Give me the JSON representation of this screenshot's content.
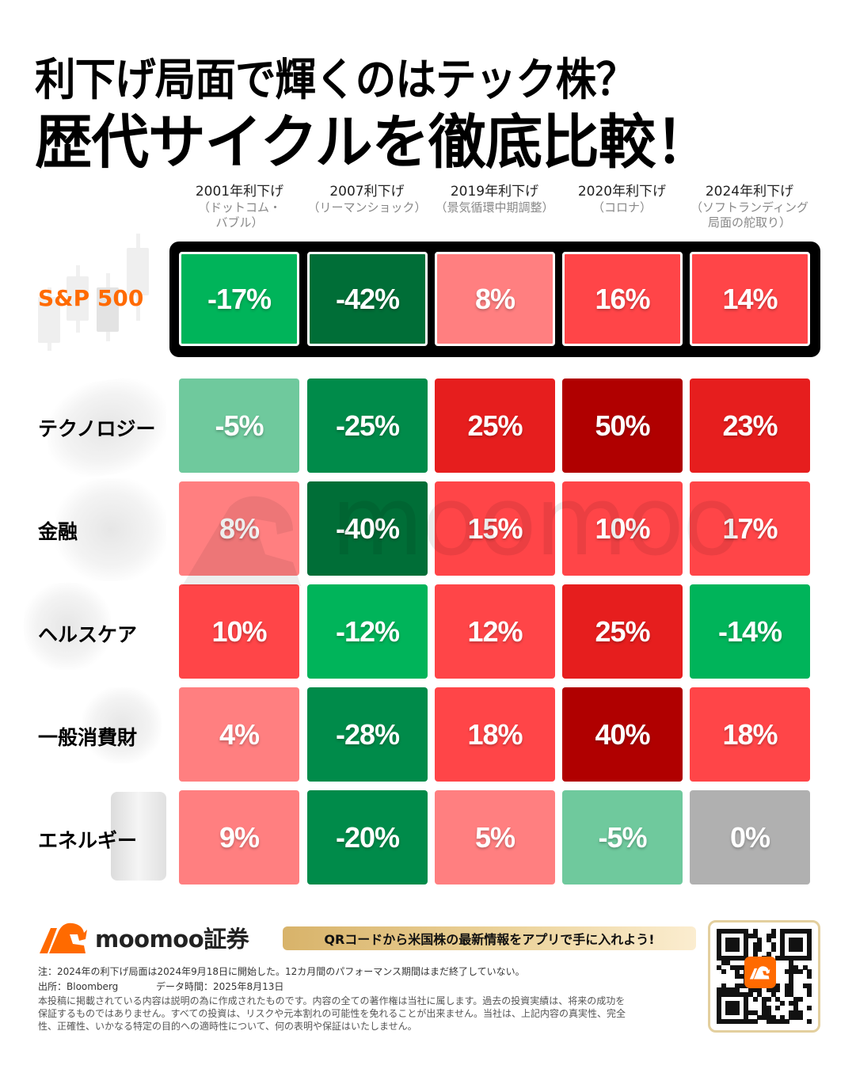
{
  "title": {
    "line1": "利下げ局面で輝くのはテック株？",
    "line2": "歴代サイクルを徹底比較！"
  },
  "columns": [
    {
      "year": "2001年利下げ",
      "note": "（ドットコム・バブル）"
    },
    {
      "year": "2007利下げ",
      "note": "（リーマンショック）"
    },
    {
      "year": "2019年利下げ",
      "note": "（景気循環中期調整）"
    },
    {
      "year": "2020年利下げ",
      "note": "（コロナ）"
    },
    {
      "year": "2024年利下げ",
      "note": "（ソフトランディング局面の舵取り）"
    }
  ],
  "rows": [
    {
      "label": "S&P 500",
      "values": [
        "-17%",
        "-42%",
        "8%",
        "16%",
        "14%"
      ],
      "colors": [
        "#00b45a",
        "#006e37",
        "#ff7f80",
        "#ff4548",
        "#ff4548"
      ]
    },
    {
      "label": "テクノロジー",
      "values": [
        "-5%",
        "-25%",
        "25%",
        "50%",
        "23%"
      ],
      "colors": [
        "#6fc99d",
        "#008b4a",
        "#e61e1e",
        "#b00000",
        "#e61e1e"
      ]
    },
    {
      "label": "金融",
      "values": [
        "8%",
        "-40%",
        "15%",
        "10%",
        "17%"
      ],
      "colors": [
        "#ff7f80",
        "#006e37",
        "#ff4548",
        "#ff4548",
        "#ff4548"
      ]
    },
    {
      "label": "ヘルスケア",
      "values": [
        "10%",
        "-12%",
        "12%",
        "25%",
        "-14%"
      ],
      "colors": [
        "#ff4548",
        "#00b45a",
        "#ff4548",
        "#e61e1e",
        "#00b45a"
      ]
    },
    {
      "label": "一般消費財",
      "values": [
        "4%",
        "-28%",
        "18%",
        "40%",
        "18%"
      ],
      "colors": [
        "#ff7f80",
        "#008b4a",
        "#ff4548",
        "#b00000",
        "#ff4548"
      ]
    },
    {
      "label": "エネルギー",
      "values": [
        "9%",
        "-20%",
        "5%",
        "-5%",
        "0%"
      ],
      "colors": [
        "#ff7f80",
        "#008b4a",
        "#ff7f80",
        "#6fc99d",
        "#b0b0b0"
      ]
    }
  ],
  "watermark": "moomoo",
  "footer": {
    "brand": "moomoo証券",
    "banner": "QRコードから米国株の最新情報をアプリで手に入れよう!",
    "note": "注：2024年の利下げ局面は2024年9月18日に開始した。12カ月間のパフォーマンス期間はまだ終了していない。",
    "source": "出所：Bloomberg",
    "data_time": "データ時間：2025年8月13日",
    "disclaimer": "本投稿に掲載されている内容は説明の為に作成されたものです。内容の全ての著作権は当社に属します。過去の投資実績は、将来の成功を保証するものではありません。すべての投資は、リスクや元本割れの可能性を免れることが出来ません。当社は、上記内容の真実性、完全性、正確性、いかなる特定の目的への適時性について、何の表明や保証はいたしません。"
  },
  "colors": {
    "accent_orange": "#ff6a00",
    "banner_gold": "#e3c685"
  },
  "chart_data": {
    "type": "heatmap",
    "title": "利下げ局面で輝くのはテック株？ 歴代サイクルを徹底比較！",
    "x": [
      "2001年利下げ（ドットコム・バブル）",
      "2007利下げ（リーマンショック）",
      "2019年利下げ（景気循環中期調整）",
      "2020年利下げ（コロナ）",
      "2024年利下げ（ソフトランディング局面の舵取り）"
    ],
    "y": [
      "S&P 500",
      "テクノロジー",
      "金融",
      "ヘルスケア",
      "一般消費財",
      "エネルギー"
    ],
    "values": [
      [
        -17,
        -42,
        8,
        16,
        14
      ],
      [
        -5,
        -25,
        25,
        50,
        23
      ],
      [
        8,
        -40,
        15,
        10,
        17
      ],
      [
        10,
        -12,
        12,
        25,
        -14
      ],
      [
        4,
        -28,
        18,
        40,
        18
      ],
      [
        9,
        -20,
        5,
        -5,
        0
      ]
    ],
    "unit": "%",
    "color_scale": "red = positive, green = negative, gray = zero",
    "highlight_row": "S&P 500"
  }
}
